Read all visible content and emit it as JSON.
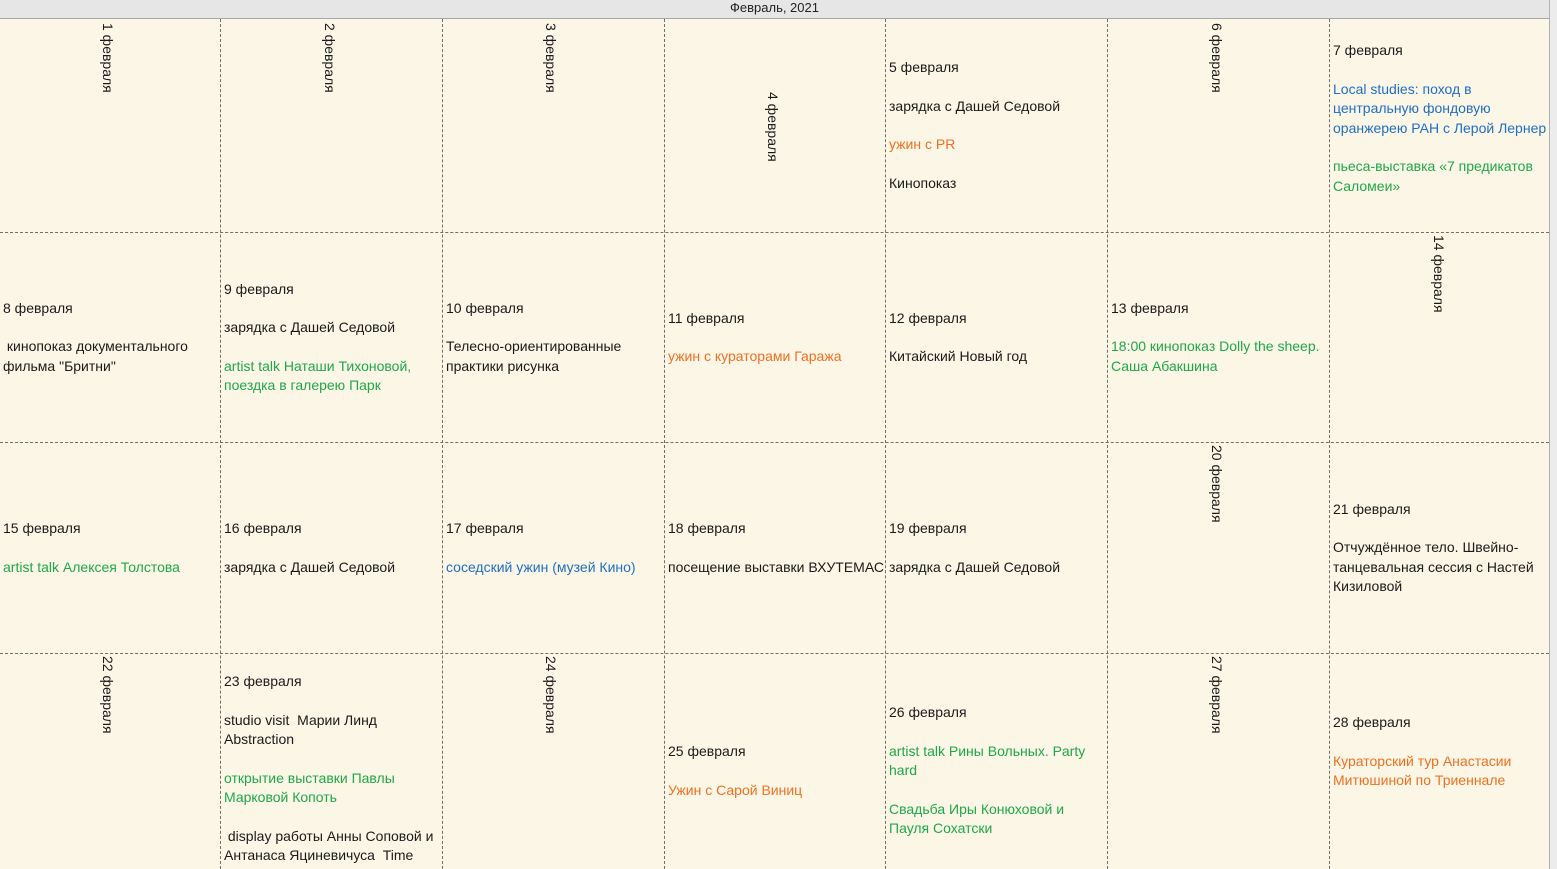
{
  "header": {
    "title": "Февраль, 2021"
  },
  "colors": {
    "black": "#1a1a1a",
    "blue": "#1f6fc4",
    "green": "#1fa84a",
    "orange": "#f07020"
  },
  "days": {
    "d1": {
      "date": "1 февраля"
    },
    "d2": {
      "date": "2 февраля"
    },
    "d3": {
      "date": "3 февраля"
    },
    "d4": {
      "date": "4 февраля"
    },
    "d5": {
      "date": "5 февраля",
      "e1": "зарядка с Дашей Седовой",
      "e2": "ужин с PR",
      "e3": "Кинопоказ"
    },
    "d6": {
      "date": "6 февраля"
    },
    "d7": {
      "date": "7 февраля",
      "e1": "Local studies: поход в центральную фондовую оранжерею РАН с Лерой Лернер",
      "e2": "пьеса-выставка «7 предикатов Саломеи»"
    },
    "d8": {
      "date": "8 февраля",
      "e1": " кинопоказ документального фильма \"Бритни\""
    },
    "d9": {
      "date": "9 февраля",
      "e1": "зарядка с Дашей Седовой",
      "e2": "artist talk Наташи Тихоновой, поездка в галерею Парк"
    },
    "d10": {
      "date": "10 февраля",
      "e1": "Телесно-ориентированные практики рисунка"
    },
    "d11": {
      "date": "11 февраля",
      "e1": "ужин с кураторами Гаража"
    },
    "d12": {
      "date": "12 февраля",
      "e1": "Китайский Новый год"
    },
    "d13": {
      "date": "13 февраля",
      "e1": "18:00 кинопоказ Dolly the sheep. Саша Абакшина"
    },
    "d14": {
      "date": "14 февраля"
    },
    "d15": {
      "date": "15 февраля",
      "e1": "artist talk Алексея Толстова"
    },
    "d16": {
      "date": "16 февраля",
      "e1": "зарядка с Дашей Седовой"
    },
    "d17": {
      "date": "17 февраля",
      "e1": "соседский ужин (музей Кино)"
    },
    "d18": {
      "date": "18 февраля",
      "e1": "посещение выставки ВХУТЕМАС"
    },
    "d19": {
      "date": "19 февраля",
      "e1": "зарядка с Дашей Седовой"
    },
    "d20": {
      "date": "20 февраля"
    },
    "d21": {
      "date": "21 февраля",
      "e1": "Отчуждённое тело. Швейно-танцевальная сессия с Настей Кизиловой"
    },
    "d22": {
      "date": "22 февраля"
    },
    "d23": {
      "date": "23 февраля",
      "e1": "studio visit  Марии Линд Abstraction",
      "e2": "открытие выставки Павлы Марковой Копоть",
      "e3": " display работы Анны Соповой и Антанаса Яциневичуса  Time"
    },
    "d24": {
      "date": "24 февраля"
    },
    "d25": {
      "date": "25 февраля",
      "e1": "Ужин с Сарой Виниц"
    },
    "d26": {
      "date": "26 февраля",
      "e1": "artist talk Рины Вольных. Party hard",
      "e2": "Свадьба Иры Конюховой и Пауля Сохатски"
    },
    "d27": {
      "date": "27 февраля"
    },
    "d28": {
      "date": "28 февраля",
      "e1": "Кураторский тур Анастасии Митюшиной по Триеннале"
    }
  }
}
